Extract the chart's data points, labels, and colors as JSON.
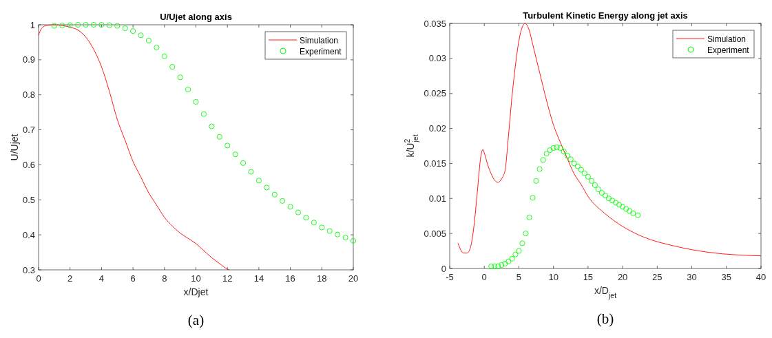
{
  "chart_data": [
    {
      "type": "line",
      "title": "U/Ujet along axis",
      "xlabel": "x/Djet",
      "ylabel": "U/Ujet",
      "xlim": [
        0,
        20
      ],
      "xticks": [
        0,
        2,
        4,
        6,
        8,
        10,
        12,
        14,
        16,
        18,
        20
      ],
      "ylim": [
        0.3,
        1
      ],
      "yticks": [
        0.3,
        0.4,
        0.5,
        0.6,
        0.7,
        0.8,
        0.9,
        1
      ],
      "legend": "top right",
      "grid": false,
      "annotations": [
        "(a)"
      ],
      "series": [
        {
          "name": "Simulation",
          "color": "#ff0000",
          "marker": "none",
          "x": [
            0,
            0.2,
            0.5,
            1,
            1.5,
            2,
            2.5,
            3,
            3.5,
            4,
            4.5,
            5,
            5.5,
            6,
            6.5,
            7,
            7.5,
            8,
            8.5,
            9,
            9.5,
            10,
            10.5,
            11,
            11.5,
            12,
            12.1
          ],
          "values": [
            0.97,
            0.99,
            0.998,
            1.0,
            0.998,
            0.993,
            0.985,
            0.965,
            0.93,
            0.88,
            0.81,
            0.73,
            0.67,
            0.61,
            0.565,
            0.52,
            0.485,
            0.45,
            0.425,
            0.405,
            0.39,
            0.375,
            0.355,
            0.335,
            0.318,
            0.302,
            0.3
          ]
        },
        {
          "name": "Experiment",
          "type": "scatter",
          "color": "#00ff00",
          "marker": "circle",
          "x": [
            1,
            1.5,
            2,
            2.5,
            3,
            3.5,
            4,
            4.5,
            5,
            5.5,
            6,
            6.5,
            7,
            7.5,
            8,
            8.5,
            9,
            9.5,
            10,
            10.5,
            11,
            11.5,
            12,
            12.5,
            13,
            13.5,
            14,
            14.5,
            15,
            15.5,
            16,
            16.5,
            17,
            17.5,
            18,
            18.5,
            19,
            19.5,
            20
          ],
          "values": [
            0.997,
            0.998,
            0.999,
            1.0,
            1.0,
            1.0,
            1.0,
            0.999,
            0.997,
            0.99,
            0.982,
            0.97,
            0.955,
            0.935,
            0.91,
            0.88,
            0.85,
            0.815,
            0.78,
            0.745,
            0.71,
            0.68,
            0.655,
            0.63,
            0.605,
            0.58,
            0.555,
            0.535,
            0.515,
            0.497,
            0.48,
            0.464,
            0.449,
            0.435,
            0.421,
            0.411,
            0.401,
            0.392,
            0.383
          ]
        }
      ]
    },
    {
      "type": "line",
      "title": "Turbulent Kinetic Energy along jet axis",
      "xlabel": "x/D$_{jet}$",
      "ylabel": "k/U$^{2}$$_{jet}$",
      "xlim": [
        -5,
        40
      ],
      "xticks": [
        -5,
        0,
        5,
        10,
        15,
        20,
        25,
        30,
        35,
        40
      ],
      "ylim": [
        0,
        0.035
      ],
      "yticks": [
        0,
        0.005,
        0.01,
        0.015,
        0.02,
        0.025,
        0.03,
        0.035
      ],
      "legend": "top right",
      "grid": false,
      "annotations": [
        "(b)"
      ],
      "series": [
        {
          "name": "Simulation",
          "color": "#ff0000",
          "marker": "none",
          "x": [
            -3.8,
            -3,
            -2.5,
            -2,
            -1.5,
            -1,
            -0.5,
            -0.2,
            0,
            0.5,
            1,
            1.5,
            2,
            2.5,
            3,
            3.5,
            4,
            4.5,
            5,
            5.5,
            5.9,
            6.5,
            7,
            8,
            9,
            10,
            11,
            12,
            13,
            14,
            15,
            17.5,
            20,
            23,
            27.5,
            32.5,
            40
          ],
          "values": [
            0.0036,
            0.0022,
            0.0022,
            0.003,
            0.006,
            0.011,
            0.016,
            0.017,
            0.0165,
            0.0148,
            0.0135,
            0.0126,
            0.0123,
            0.0128,
            0.014,
            0.019,
            0.0245,
            0.029,
            0.0325,
            0.0345,
            0.035,
            0.034,
            0.032,
            0.028,
            0.024,
            0.0205,
            0.018,
            0.0157,
            0.0135,
            0.012,
            0.0103,
            0.0078,
            0.006,
            0.0045,
            0.0032,
            0.0023,
            0.0018
          ]
        },
        {
          "name": "Experiment",
          "type": "scatter",
          "color": "#00ff00",
          "marker": "circle",
          "x": [
            1,
            1.5,
            2,
            2.5,
            3,
            3.5,
            4,
            4.5,
            5,
            5.5,
            6,
            6.5,
            7,
            7.5,
            8,
            8.5,
            9,
            9.5,
            10,
            10.5,
            11,
            11.5,
            12,
            12.5,
            13,
            13.5,
            14,
            14.5,
            15,
            15.5,
            16,
            16.5,
            17,
            17.5,
            18,
            18.5,
            19,
            19.5,
            20,
            20.5,
            21,
            21.5,
            22.2
          ],
          "values": [
            0.0003,
            0.0003,
            0.0003,
            0.0005,
            0.0007,
            0.001,
            0.0014,
            0.002,
            0.0025,
            0.0036,
            0.005,
            0.0073,
            0.0101,
            0.0125,
            0.0142,
            0.0155,
            0.0164,
            0.0169,
            0.0172,
            0.0173,
            0.0172,
            0.0167,
            0.0161,
            0.0156,
            0.015,
            0.0146,
            0.0141,
            0.0136,
            0.0131,
            0.0125,
            0.0119,
            0.0113,
            0.0108,
            0.0104,
            0.01,
            0.0097,
            0.0094,
            0.0091,
            0.0088,
            0.0085,
            0.0082,
            0.0079,
            0.0076
          ]
        }
      ]
    }
  ]
}
